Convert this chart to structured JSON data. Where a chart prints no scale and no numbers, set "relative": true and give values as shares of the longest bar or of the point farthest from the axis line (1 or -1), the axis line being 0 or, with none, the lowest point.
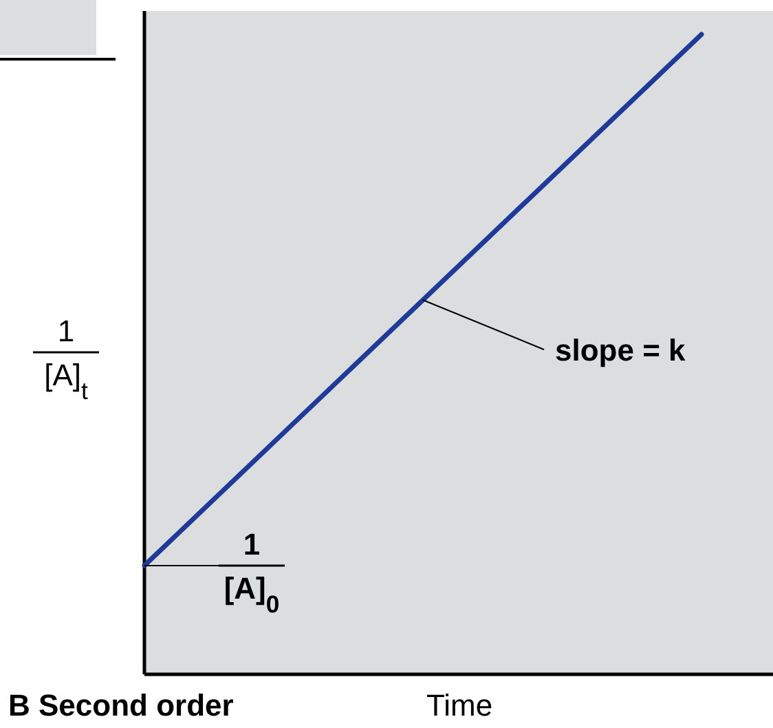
{
  "chart_data": {
    "type": "line",
    "title": "B Second order",
    "xlabel": "Time",
    "ylabel": "1\n[A]$_{t}$",
    "relative": true,
    "categories": [
      null,
      null
    ],
    "series": [
      {
        "color": "#1f3b9a",
        "values": [
          0.17,
          1
        ]
      }
    ],
    "annotations": [
      "slope = k",
      "1\n[A]$_{0}$"
    ]
  }
}
